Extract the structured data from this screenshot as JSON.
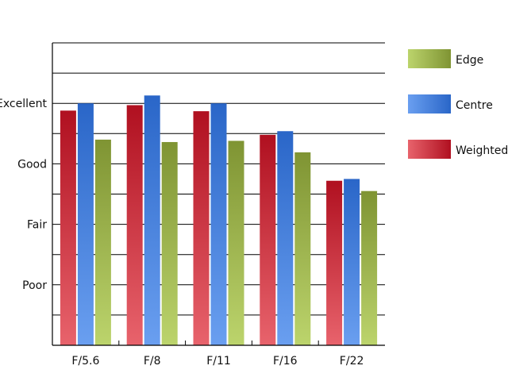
{
  "chart_data": {
    "type": "bar",
    "title": "",
    "xlabel": "",
    "ylabel": "",
    "categories": [
      "F/5.6",
      "F/8",
      "F/11",
      "F/16",
      "F/22"
    ],
    "y_ticks": [
      {
        "value": 1,
        "label": "Poor"
      },
      {
        "value": 2,
        "label": "Fair"
      },
      {
        "value": 3,
        "label": "Good"
      },
      {
        "value": 4,
        "label": "Excellent"
      }
    ],
    "ylim": [
      0,
      5
    ],
    "grid": true,
    "legend_position": "right",
    "series": [
      {
        "name": "Weighted",
        "colors": [
          "#e8636c",
          "#b01020"
        ],
        "values": [
          3.88,
          3.97,
          3.87,
          3.48,
          2.72
        ]
      },
      {
        "name": "Centre",
        "colors": [
          "#6a9ff0",
          "#2a66c8"
        ],
        "values": [
          4.0,
          4.13,
          4.0,
          3.54,
          2.75
        ]
      },
      {
        "name": "Edge",
        "colors": [
          "#bcd46c",
          "#7f9433"
        ],
        "values": [
          3.4,
          3.36,
          3.38,
          3.19,
          2.55
        ]
      }
    ],
    "legend_order": [
      "Edge",
      "Centre",
      "Weighted"
    ]
  }
}
